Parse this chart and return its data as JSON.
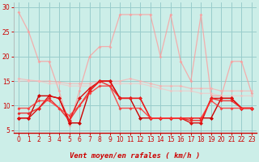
{
  "title": "Vent moyen/en rafales ( km/h )",
  "bg_color": "#cceee8",
  "grid_color": "#99cccc",
  "xlim": [
    -0.5,
    23.5
  ],
  "ylim": [
    4.5,
    31
  ],
  "yticks": [
    5,
    10,
    15,
    20,
    25,
    30
  ],
  "xticks": [
    0,
    1,
    2,
    3,
    4,
    5,
    6,
    7,
    8,
    9,
    10,
    11,
    12,
    13,
    14,
    15,
    16,
    17,
    18,
    19,
    20,
    21,
    22,
    23
  ],
  "series": [
    {
      "color": "#ff9999",
      "alpha": 0.75,
      "lw": 0.9,
      "marker": "D",
      "ms": 2.0,
      "data": [
        29,
        25,
        19,
        19,
        13,
        6,
        13,
        20,
        22,
        22,
        28.5,
        28.5,
        28.5,
        28.5,
        20,
        28.5,
        19,
        15,
        28.5,
        12,
        12,
        19,
        19,
        12.5
      ]
    },
    {
      "color": "#ffaaaa",
      "alpha": 0.65,
      "lw": 0.9,
      "marker": "D",
      "ms": 2.0,
      "data": [
        15.5,
        15.2,
        15.0,
        15.0,
        14.8,
        14.5,
        14.5,
        14.5,
        15.0,
        15.0,
        15.0,
        15.5,
        15.0,
        14.5,
        14.0,
        14.0,
        14.0,
        13.5,
        13.5,
        13.5,
        13.0,
        13.0,
        13.0,
        13.0
      ]
    },
    {
      "color": "#ffbbbb",
      "alpha": 0.55,
      "lw": 0.9,
      "marker": "D",
      "ms": 2.0,
      "data": [
        15.0,
        15.0,
        15.0,
        14.5,
        14.5,
        14.0,
        14.0,
        14.0,
        14.5,
        14.5,
        14.5,
        14.5,
        14.5,
        14.0,
        13.5,
        13.0,
        13.0,
        13.0,
        12.5,
        12.5,
        12.0,
        12.0,
        12.0,
        12.0
      ]
    },
    {
      "color": "#cc0000",
      "alpha": 1.0,
      "lw": 1.0,
      "marker": "D",
      "ms": 2.5,
      "data": [
        7.5,
        7.5,
        12,
        12,
        11.5,
        6.5,
        6.5,
        13,
        15,
        15,
        11.5,
        11.5,
        7.5,
        7.5,
        7.5,
        7.5,
        7.5,
        7.5,
        7.5,
        7.5,
        11.5,
        11.5,
        9.5,
        9.5
      ]
    },
    {
      "color": "#dd1111",
      "alpha": 1.0,
      "lw": 1.0,
      "marker": "D",
      "ms": 2.5,
      "data": [
        7.5,
        7.5,
        9.5,
        12,
        11.5,
        7,
        11.5,
        13.5,
        15,
        15,
        11.5,
        11.5,
        11.5,
        7.5,
        7.5,
        7.5,
        7.5,
        6.5,
        6.5,
        11.5,
        11.5,
        11.5,
        9.5,
        9.5
      ]
    },
    {
      "color": "#ee2222",
      "alpha": 0.9,
      "lw": 1.0,
      "marker": "D",
      "ms": 2.0,
      "data": [
        8.5,
        8.5,
        9.5,
        11.5,
        9.5,
        7,
        10,
        13,
        15,
        14,
        11.5,
        11.5,
        11.5,
        7.5,
        7.5,
        7.5,
        7.5,
        7,
        7,
        11.5,
        11,
        11,
        9.5,
        9.5
      ]
    },
    {
      "color": "#ff3333",
      "alpha": 0.85,
      "lw": 1.0,
      "marker": "D",
      "ms": 2.0,
      "data": [
        9.5,
        9.5,
        11,
        11,
        9.5,
        8,
        10,
        12.5,
        14,
        14,
        9.5,
        9.5,
        9.5,
        7.5,
        7.5,
        7.5,
        7.5,
        7.5,
        7.5,
        11,
        9.5,
        9.5,
        9.5,
        9.5
      ]
    }
  ],
  "arrow_color": "#cc2222",
  "xlabel_fontsize": 6.5,
  "tick_fontsize": 5.5
}
